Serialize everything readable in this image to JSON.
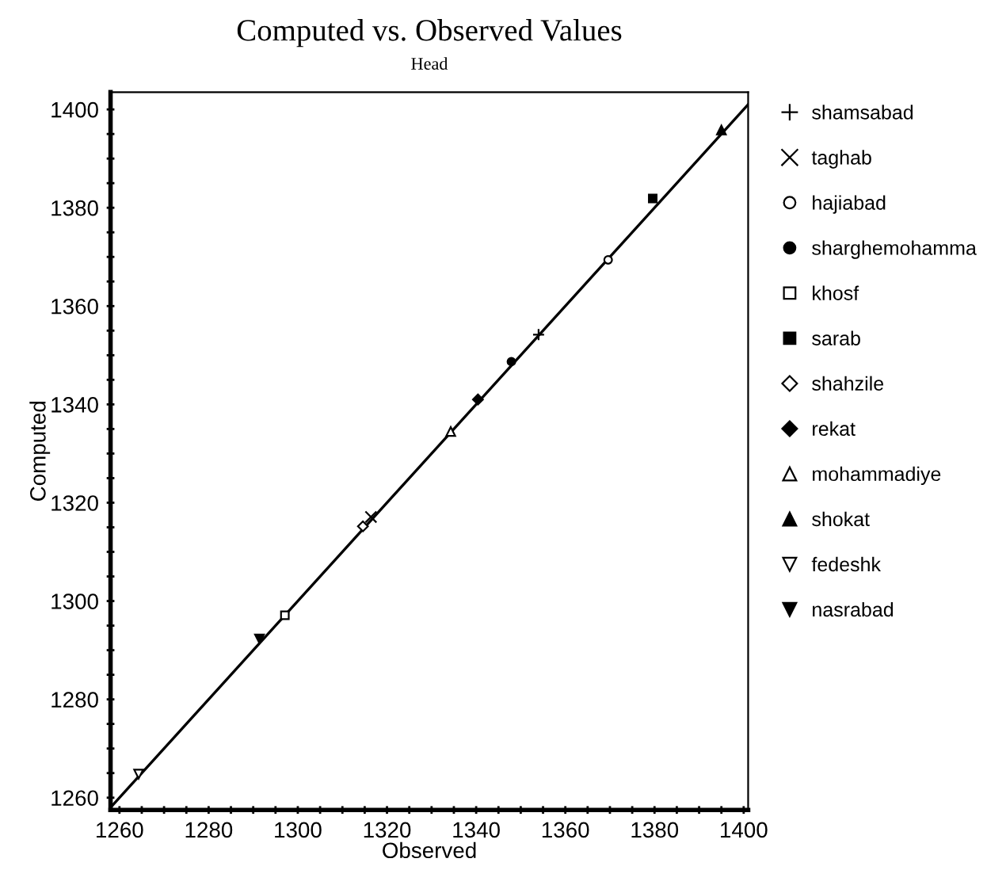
{
  "chart_data": {
    "type": "scatter",
    "title": "Computed vs. Observed Values",
    "subtitle": "Head",
    "xlabel": "Observed",
    "ylabel": "Computed",
    "xlim": [
      1258,
      1401
    ],
    "ylim": [
      1257.5,
      1403.5
    ],
    "xticks": [
      1260,
      {
        "value": 1265,
        "label": null
      },
      {
        "value": 1270,
        "label": null
      },
      {
        "value": 1275,
        "label": null
      },
      1280,
      {
        "value": 1285,
        "label": null
      },
      {
        "value": 1290,
        "label": null
      },
      {
        "value": 1295,
        "label": null
      },
      1300,
      {
        "value": 1305,
        "label": null
      },
      {
        "value": 1310,
        "label": null
      },
      {
        "value": 1315,
        "label": null
      },
      1320,
      {
        "value": 1325,
        "label": null
      },
      {
        "value": 1330,
        "label": null
      },
      {
        "value": 1335,
        "label": null
      },
      1340,
      {
        "value": 1345,
        "label": null
      },
      {
        "value": 1350,
        "label": null
      },
      {
        "value": 1355,
        "label": null
      },
      1360,
      {
        "value": 1365,
        "label": null
      },
      {
        "value": 1370,
        "label": null
      },
      {
        "value": 1375,
        "label": null
      },
      1380,
      {
        "value": 1385,
        "label": null
      },
      {
        "value": 1390,
        "label": null
      },
      {
        "value": 1395,
        "label": null
      },
      1400
    ],
    "yticks": [
      1260,
      {
        "value": 1265,
        "label": null
      },
      {
        "value": 1270,
        "label": null
      },
      {
        "value": 1275,
        "label": null
      },
      1280,
      {
        "value": 1285,
        "label": null
      },
      {
        "value": 1290,
        "label": null
      },
      {
        "value": 1295,
        "label": null
      },
      1300,
      {
        "value": 1305,
        "label": null
      },
      {
        "value": 1310,
        "label": null
      },
      {
        "value": 1315,
        "label": null
      },
      1320,
      {
        "value": 1325,
        "label": null
      },
      {
        "value": 1330,
        "label": null
      },
      {
        "value": 1335,
        "label": null
      },
      1340,
      {
        "value": 1345,
        "label": null
      },
      {
        "value": 1350,
        "label": null
      },
      {
        "value": 1355,
        "label": null
      },
      1360,
      {
        "value": 1365,
        "label": null
      },
      {
        "value": 1370,
        "label": null
      },
      {
        "value": 1375,
        "label": null
      },
      1380,
      {
        "value": 1385,
        "label": null
      },
      {
        "value": 1390,
        "label": null
      },
      {
        "value": 1395,
        "label": null
      },
      1400
    ],
    "grid": false,
    "legend": "right",
    "series": [
      {
        "name": "shamsabad",
        "color": "#000000",
        "marker": "plus",
        "x": [
          1354
        ],
        "values": [
          1354.2
        ]
      },
      {
        "name": "taghab",
        "color": "#000000",
        "marker": "cross",
        "x": [
          1316.4
        ],
        "values": [
          1317.1
        ]
      },
      {
        "name": "hajiabad",
        "color": "#000000",
        "marker": "circle-open",
        "x": [
          1369.6
        ],
        "values": [
          1369.4
        ]
      },
      {
        "name": "sharghemohamma",
        "color": "#000000",
        "marker": "circle",
        "x": [
          1347.9
        ],
        "values": [
          1348.7
        ]
      },
      {
        "name": "khosf",
        "color": "#000000",
        "marker": "square-open",
        "x": [
          1297.1
        ],
        "values": [
          1297.1
        ]
      },
      {
        "name": "sarab",
        "color": "#000000",
        "marker": "square",
        "x": [
          1379.6
        ],
        "values": [
          1381.9
        ]
      },
      {
        "name": "shahzile",
        "color": "#000000",
        "marker": "diamond-open",
        "x": [
          1314.6
        ],
        "values": [
          1315.2
        ]
      },
      {
        "name": "rekat",
        "color": "#000000",
        "marker": "diamond",
        "x": [
          1340.4
        ],
        "values": [
          1341
        ]
      },
      {
        "name": "mohammadiye",
        "color": "#000000",
        "marker": "triangle-open",
        "x": [
          1334.3
        ],
        "values": [
          1334.5
        ]
      },
      {
        "name": "shokat",
        "color": "#000000",
        "marker": "triangle",
        "x": [
          1395
        ],
        "values": [
          1395.8
        ]
      },
      {
        "name": "fedeshk",
        "color": "#000000",
        "marker": "triangle-down-open",
        "x": [
          1264.3
        ],
        "values": [
          1264.8
        ]
      },
      {
        "name": "nasrabad",
        "color": "#000000",
        "marker": "triangle-down",
        "x": [
          1291.4
        ],
        "values": [
          1292.3
        ]
      },
      {
        "type": "line",
        "color": "#000000",
        "marker": "none",
        "x": [
          1258,
          1401
        ],
        "values": [
          1258,
          1401
        ]
      }
    ]
  }
}
